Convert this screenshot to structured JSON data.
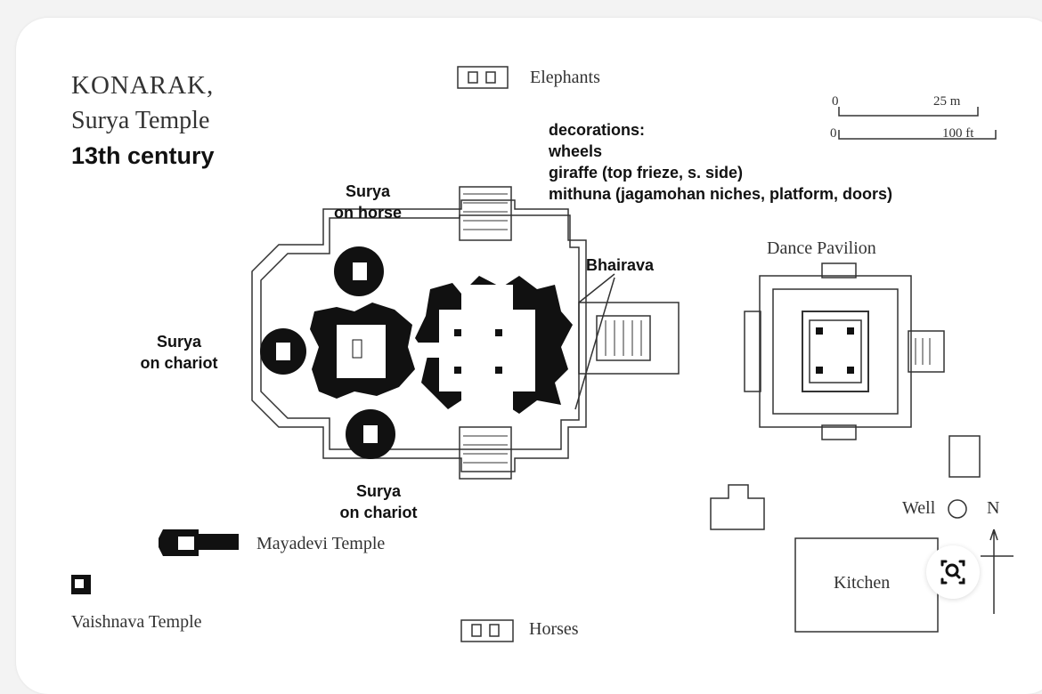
{
  "title": {
    "line1": "KONARAK,",
    "line2": "Surya Temple",
    "line3": "13th century"
  },
  "decorations": {
    "heading": "decorations:",
    "items": [
      "wheels",
      "giraffe (top frieze, s. side)",
      "mithuna (jagamohan niches, platform, doors)"
    ]
  },
  "labels": {
    "surya_horse": [
      "Surya",
      "on horse"
    ],
    "surya_chariot_west": [
      "Surya",
      "on chariot"
    ],
    "surya_chariot_south": [
      "Surya",
      "on chariot"
    ],
    "bhairava": "Bhairava",
    "elephants": "Elephants",
    "horses": "Horses",
    "dance_pavilion": "Dance Pavilion",
    "mayadevi": "Mayadevi Temple",
    "vaishnava": "Vaishnava Temple",
    "well": "Well",
    "north": "N",
    "kitchen": "Kitchen"
  },
  "scale": {
    "zero_m": "0",
    "meters": "25 m",
    "zero_ft": "0",
    "feet": "100 ft"
  },
  "icons": {
    "zoom": "zoom-search-icon"
  }
}
